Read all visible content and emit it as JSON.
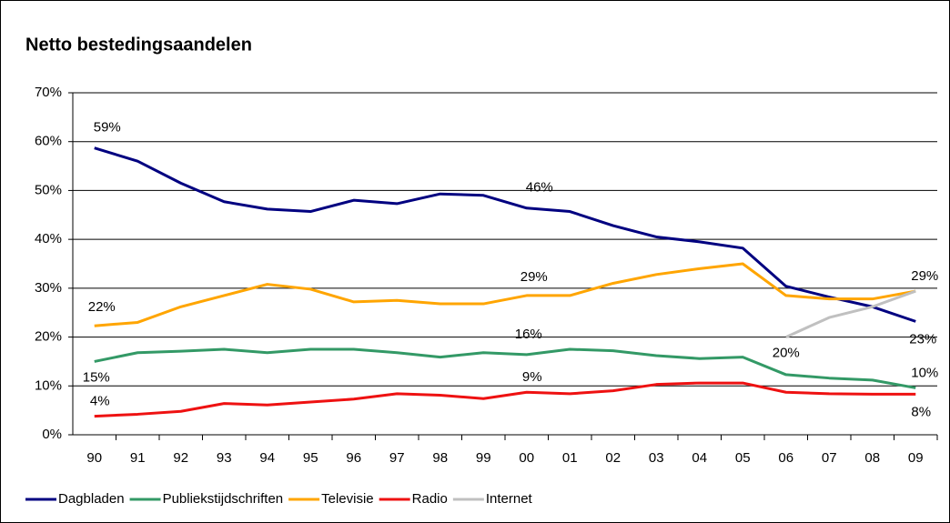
{
  "chart_data": {
    "type": "line",
    "title": "Netto bestedingsaandelen",
    "categories": [
      "90",
      "91",
      "92",
      "93",
      "94",
      "95",
      "96",
      "97",
      "98",
      "99",
      "00",
      "01",
      "02",
      "03",
      "04",
      "05",
      "06",
      "07",
      "08",
      "09"
    ],
    "ylim": [
      0,
      70
    ],
    "yticks": [
      {
        "value": 0,
        "label": "0%"
      },
      {
        "value": 10,
        "label": "10%"
      },
      {
        "value": 20,
        "label": "20%"
      },
      {
        "value": 30,
        "label": "30%"
      },
      {
        "value": 40,
        "label": "40%"
      },
      {
        "value": 50,
        "label": "50%"
      },
      {
        "value": 60,
        "label": "60%"
      },
      {
        "value": 70,
        "label": "70%"
      }
    ],
    "grid": true,
    "legend": "bottom",
    "series": [
      {
        "name": "Dagbladen",
        "color": "#000080",
        "values": [
          58.7,
          56,
          51.5,
          47.7,
          46.2,
          45.7,
          48,
          47.3,
          49.3,
          49,
          46.4,
          45.7,
          42.8,
          40.5,
          39.5,
          38.2,
          30.4,
          28.2,
          26.2,
          23.2
        ],
        "value_labels": [
          "59%",
          null,
          null,
          null,
          null,
          null,
          null,
          null,
          null,
          null,
          "46%",
          null,
          null,
          null,
          null,
          null,
          null,
          null,
          null,
          "23%"
        ]
      },
      {
        "name": "Publiekstijdschriften",
        "color": "#339966",
        "values": [
          15,
          16.8,
          17.1,
          17.5,
          16.8,
          17.5,
          17.5,
          16.8,
          15.9,
          16.8,
          16.4,
          17.5,
          17.2,
          16.2,
          15.6,
          15.9,
          12.3,
          11.6,
          11.2,
          9.6
        ],
        "value_labels": [
          "15%",
          null,
          null,
          null,
          null,
          null,
          null,
          null,
          null,
          null,
          "16%",
          null,
          null,
          null,
          null,
          null,
          null,
          null,
          null,
          "10%"
        ]
      },
      {
        "name": "Televisie",
        "color": "#ffa500",
        "values": [
          22.3,
          23,
          26.2,
          28.5,
          30.8,
          29.8,
          27.2,
          27.5,
          26.8,
          26.8,
          28.5,
          28.5,
          31,
          32.8,
          34,
          35,
          28.5,
          27.8,
          27.8,
          29.4
        ],
        "value_labels": [
          "22%",
          null,
          null,
          null,
          null,
          null,
          null,
          null,
          null,
          null,
          "29%",
          null,
          null,
          null,
          null,
          null,
          null,
          null,
          null,
          "29%"
        ]
      },
      {
        "name": "Radio",
        "color": "#ee1111",
        "values": [
          3.8,
          4.2,
          4.8,
          6.4,
          6.1,
          6.7,
          7.3,
          8.4,
          8.1,
          7.4,
          8.7,
          8.4,
          9,
          10.3,
          10.6,
          10.6,
          8.7,
          8.4,
          8.3,
          8.3
        ],
        "value_labels": [
          "4%",
          null,
          null,
          null,
          null,
          null,
          null,
          null,
          null,
          null,
          "9%",
          null,
          null,
          null,
          null,
          null,
          null,
          null,
          null,
          "8%"
        ]
      },
      {
        "name": "Internet",
        "color": "#c0c0c0",
        "values": [
          null,
          null,
          null,
          null,
          null,
          null,
          null,
          null,
          null,
          null,
          null,
          null,
          null,
          null,
          null,
          null,
          20,
          24,
          26.2,
          29.4
        ],
        "value_labels": [
          null,
          null,
          null,
          null,
          null,
          null,
          null,
          null,
          null,
          null,
          null,
          null,
          null,
          null,
          null,
          null,
          "20%",
          null,
          null,
          null
        ]
      }
    ]
  }
}
